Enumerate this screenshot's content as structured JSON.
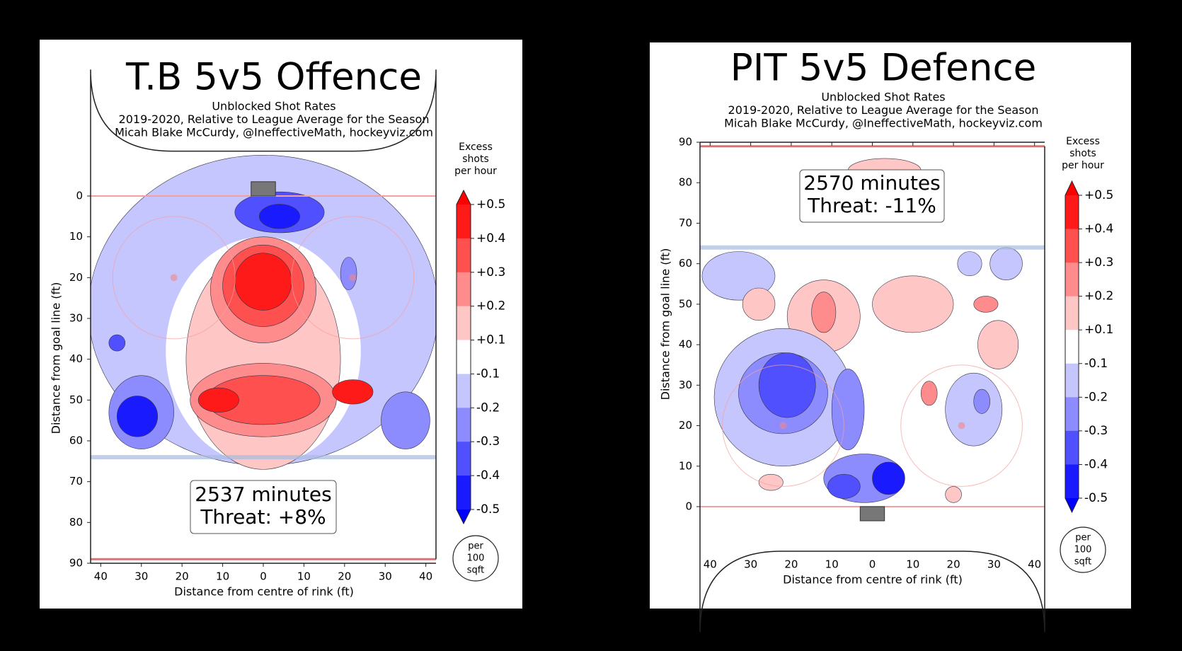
{
  "chart_data": [
    {
      "type": "heatmap",
      "title": "T.B 5v5 Offence",
      "subtitle": [
        "Unblocked Shot Rates",
        "2019-2020, Relative to League Average for the Season",
        "Micah Blake McCurdy, @IneffectiveMath, hockeyviz.com"
      ],
      "annotation": [
        "2537 minutes",
        "Threat: +8%"
      ],
      "xlabel": "Distance from centre of rink (ft)",
      "ylabel": "Distance from goal line (ft)",
      "xlim": [
        -42.5,
        42.5
      ],
      "ylim": [
        -11,
        90
      ],
      "invert_y": true,
      "xticks": [
        {
          "value": -40,
          "label": "40"
        },
        {
          "value": -30,
          "label": "30"
        },
        {
          "value": -20,
          "label": "20"
        },
        {
          "value": -10,
          "label": "10"
        },
        0,
        10,
        20,
        30,
        40
      ],
      "yticks": [
        0,
        10,
        20,
        30,
        40,
        50,
        60,
        70,
        80,
        90
      ],
      "colorbar": {
        "label": [
          "Excess",
          "shots",
          "per hour"
        ],
        "unit": [
          "per",
          "100",
          "sqft"
        ],
        "ticks": [
          {
            "value": 0.5,
            "label": "+0.5"
          },
          {
            "value": 0.4,
            "label": "+0.4"
          },
          {
            "value": 0.3,
            "label": "+0.3"
          },
          {
            "value": 0.2,
            "label": "+0.2"
          },
          {
            "value": 0.1,
            "label": "+0.1"
          },
          -0.1,
          -0.2,
          -0.3,
          -0.4,
          -0.5
        ],
        "colors": [
          "#ff1a1a",
          "#ff5050",
          "#ff8c8c",
          "#ffc6c6",
          "#ffffff",
          "#c6c6ff",
          "#8c8cff",
          "#5050ff",
          "#1a1aff"
        ]
      }
    },
    {
      "type": "heatmap",
      "title": "PIT 5v5 Defence",
      "subtitle": [
        "Unblocked Shot Rates",
        "2019-2020, Relative to League Average for the Season",
        "Micah Blake McCurdy, @IneffectiveMath, hockeyviz.com"
      ],
      "annotation": [
        "2570 minutes",
        "Threat: -11%"
      ],
      "xlabel": "Distance from centre of rink (ft)",
      "ylabel": "Distance from goal line (ft)",
      "xlim": [
        -42.5,
        42.5
      ],
      "ylim": [
        -11,
        90
      ],
      "invert_y": false,
      "xticks": [
        {
          "value": -40,
          "label": "40"
        },
        {
          "value": -30,
          "label": "30"
        },
        {
          "value": -20,
          "label": "20"
        },
        {
          "value": -10,
          "label": "10"
        },
        0,
        10,
        20,
        30,
        40
      ],
      "yticks": [
        0,
        10,
        20,
        30,
        40,
        50,
        60,
        70,
        80,
        90
      ],
      "colorbar": {
        "label": [
          "Excess",
          "shots",
          "per hour"
        ],
        "unit": [
          "per",
          "100",
          "sqft"
        ],
        "ticks": [
          {
            "value": 0.5,
            "label": "+0.5"
          },
          {
            "value": 0.4,
            "label": "+0.4"
          },
          {
            "value": 0.3,
            "label": "+0.3"
          },
          {
            "value": 0.2,
            "label": "+0.2"
          },
          {
            "value": 0.1,
            "label": "+0.1"
          },
          -0.1,
          -0.2,
          -0.3,
          -0.4,
          -0.5
        ],
        "colors": [
          "#ff1a1a",
          "#ff5050",
          "#ff8c8c",
          "#ffc6c6",
          "#ffffff",
          "#c6c6ff",
          "#8c8cff",
          "#5050ff",
          "#1a1aff"
        ]
      }
    }
  ]
}
